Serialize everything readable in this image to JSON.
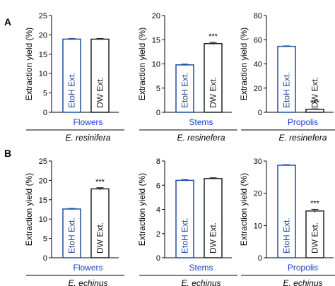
{
  "figure": {
    "panel_labels": [
      "A",
      "B"
    ],
    "significance_mark": "***",
    "ylabel": "Extraction yield (%)",
    "bar_labels": [
      "EtoH Ext.",
      "DW Ext."
    ],
    "colors": {
      "etoh": "#1f4e9e",
      "dw": "#222222",
      "group_text": "#1a3fc9",
      "axis": "#000000"
    }
  },
  "chart_data": [
    {
      "type": "bar",
      "panel": "A",
      "group": "Flowers",
      "species": "E. resinifera",
      "ylabel": "Extraction yield (%)",
      "ylim": [
        0,
        25
      ],
      "yticks": [
        0,
        5,
        10,
        15,
        20,
        25
      ],
      "categories": [
        "EtoH Ext.",
        "DW Ext."
      ],
      "values": [
        18.9,
        18.9
      ],
      "errors": [
        0.15,
        0.15
      ],
      "significance": [
        "",
        ""
      ]
    },
    {
      "type": "bar",
      "panel": "A",
      "group": "Stems",
      "species": "E. resinefera",
      "ylabel": "Extraction yield (%)",
      "ylim": [
        0,
        20
      ],
      "yticks": [
        0,
        5,
        10,
        15,
        20
      ],
      "categories": [
        "EtoH Ext.",
        "DW Ext."
      ],
      "values": [
        9.8,
        14.2
      ],
      "errors": [
        0.15,
        0.25
      ],
      "significance": [
        "",
        "***"
      ]
    },
    {
      "type": "bar",
      "panel": "A",
      "group": "Propolis",
      "species": "E. resinefera",
      "ylabel": "Extraction yield (%)",
      "ylim": [
        0,
        80
      ],
      "yticks": [
        0,
        20,
        40,
        60,
        80
      ],
      "categories": [
        "EtoH Ext.",
        "DW Ext."
      ],
      "values": [
        54.5,
        2.5
      ],
      "errors": [
        0.4,
        0.3
      ],
      "significance": [
        "",
        "***"
      ]
    },
    {
      "type": "bar",
      "panel": "B",
      "group": "Flowers",
      "species": "E. echinus",
      "ylabel": "Extraction yield (%)",
      "ylim": [
        0,
        25
      ],
      "yticks": [
        0,
        5,
        10,
        15,
        20,
        25
      ],
      "categories": [
        "EtoH Ext.",
        "DW Ext."
      ],
      "values": [
        12.6,
        17.8
      ],
      "errors": [
        0.15,
        0.3
      ],
      "significance": [
        "",
        "***"
      ]
    },
    {
      "type": "bar",
      "panel": "B",
      "group": "Stems",
      "species": "E. echinus",
      "ylabel": "Extraction yield (%)",
      "ylim": [
        0,
        8
      ],
      "yticks": [
        0,
        2,
        4,
        6,
        8
      ],
      "categories": [
        "EtoH Ext.",
        "DW Ext."
      ],
      "values": [
        6.4,
        6.55
      ],
      "errors": [
        0.06,
        0.06
      ],
      "significance": [
        "",
        ""
      ]
    },
    {
      "type": "bar",
      "panel": "B",
      "group": "Propolis",
      "species": "E. echinus",
      "ylabel": "Extraction yield (%)",
      "ylim": [
        0,
        30
      ],
      "yticks": [
        0,
        10,
        20,
        30
      ],
      "categories": [
        "EtoH Ext.",
        "DW Ext."
      ],
      "values": [
        28.7,
        14.5
      ],
      "errors": [
        0.15,
        0.5
      ],
      "significance": [
        "",
        "***"
      ]
    }
  ]
}
